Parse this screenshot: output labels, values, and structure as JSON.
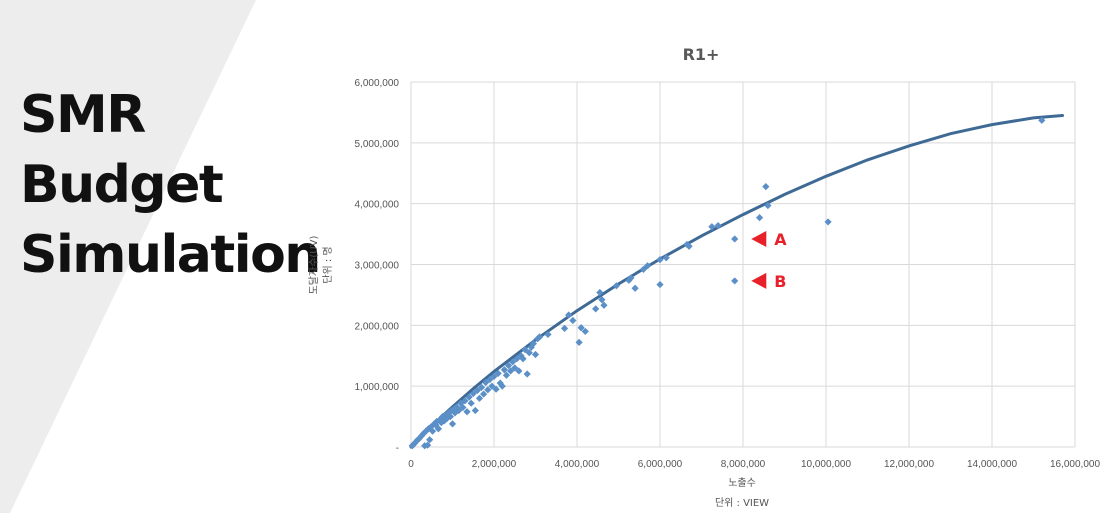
{
  "slide": {
    "title_lines": [
      "SMR",
      "Budget",
      "Simulation"
    ]
  },
  "chart_data": {
    "type": "scatter",
    "title": "R1+",
    "xlabel": "노출수",
    "xunit": "단위 : VIEW",
    "ylabel": "도달자수(UV)",
    "yunit": "단위 : 명",
    "xlim": [
      0,
      16000000
    ],
    "ylim": [
      0,
      6000000
    ],
    "xticks": [
      0,
      2000000,
      4000000,
      6000000,
      8000000,
      10000000,
      12000000,
      14000000,
      16000000
    ],
    "xtick_labels": [
      "0",
      "2,000,000",
      "4,000,000",
      "6,000,000",
      "8,000,000",
      "10,000,000",
      "12,000,000",
      "14,000,000",
      "16,000,000"
    ],
    "yticks": [
      0,
      1000000,
      2000000,
      3000000,
      4000000,
      5000000,
      6000000
    ],
    "ytick_labels": [
      "-",
      "1,000,000",
      "2,000,000",
      "3,000,000",
      "4,000,000",
      "5,000,000",
      "6,000,000"
    ],
    "grid": true,
    "legend": "none",
    "colors": {
      "points": "#5B8FC7",
      "trend": "#3E6A95",
      "annotation": "#E8202A",
      "grid": "#D9D9D9",
      "band": "#EDEDED"
    },
    "points": [
      [
        30000,
        20000
      ],
      [
        60000,
        40000
      ],
      [
        100000,
        70000
      ],
      [
        150000,
        110000
      ],
      [
        200000,
        140000
      ],
      [
        250000,
        180000
      ],
      [
        300000,
        220000
      ],
      [
        330000,
        20000
      ],
      [
        360000,
        260000
      ],
      [
        400000,
        30000
      ],
      [
        420000,
        300000
      ],
      [
        450000,
        120000
      ],
      [
        480000,
        330000
      ],
      [
        520000,
        260000
      ],
      [
        560000,
        380000
      ],
      [
        600000,
        360000
      ],
      [
        620000,
        420000
      ],
      [
        660000,
        300000
      ],
      [
        700000,
        450000
      ],
      [
        730000,
        400000
      ],
      [
        760000,
        500000
      ],
      [
        800000,
        430000
      ],
      [
        830000,
        520000
      ],
      [
        870000,
        470000
      ],
      [
        900000,
        560000
      ],
      [
        950000,
        500000
      ],
      [
        980000,
        600000
      ],
      [
        1000000,
        380000
      ],
      [
        1030000,
        620000
      ],
      [
        1060000,
        560000
      ],
      [
        1100000,
        660000
      ],
      [
        1150000,
        600000
      ],
      [
        1200000,
        720000
      ],
      [
        1250000,
        650000
      ],
      [
        1300000,
        760000
      ],
      [
        1350000,
        580000
      ],
      [
        1400000,
        820000
      ],
      [
        1450000,
        720000
      ],
      [
        1500000,
        880000
      ],
      [
        1550000,
        600000
      ],
      [
        1600000,
        930000
      ],
      [
        1650000,
        800000
      ],
      [
        1700000,
        980000
      ],
      [
        1750000,
        870000
      ],
      [
        1800000,
        1060000
      ],
      [
        1850000,
        940000
      ],
      [
        1900000,
        1110000
      ],
      [
        1950000,
        1000000
      ],
      [
        2000000,
        1160000
      ],
      [
        2050000,
        950000
      ],
      [
        2100000,
        1210000
      ],
      [
        2150000,
        1050000
      ],
      [
        2200000,
        1000000
      ],
      [
        2250000,
        1270000
      ],
      [
        2300000,
        1180000
      ],
      [
        2350000,
        1340000
      ],
      [
        2400000,
        1250000
      ],
      [
        2450000,
        1400000
      ],
      [
        2500000,
        1300000
      ],
      [
        2550000,
        1450000
      ],
      [
        2600000,
        1250000
      ],
      [
        2650000,
        1500000
      ],
      [
        2700000,
        1450000
      ],
      [
        2750000,
        1600000
      ],
      [
        2800000,
        1200000
      ],
      [
        2850000,
        1550000
      ],
      [
        2900000,
        1640000
      ],
      [
        2950000,
        1700000
      ],
      [
        3000000,
        1520000
      ],
      [
        3050000,
        1780000
      ],
      [
        3100000,
        1810000
      ],
      [
        3300000,
        1850000
      ],
      [
        3700000,
        1950000
      ],
      [
        3800000,
        2170000
      ],
      [
        3900000,
        2080000
      ],
      [
        4050000,
        1720000
      ],
      [
        4100000,
        1960000
      ],
      [
        4200000,
        1900000
      ],
      [
        4450000,
        2270000
      ],
      [
        4550000,
        2540000
      ],
      [
        4600000,
        2420000
      ],
      [
        4650000,
        2330000
      ],
      [
        4950000,
        2650000
      ],
      [
        5250000,
        2740000
      ],
      [
        5300000,
        2780000
      ],
      [
        5400000,
        2610000
      ],
      [
        5600000,
        2920000
      ],
      [
        5700000,
        2980000
      ],
      [
        6000000,
        2670000
      ],
      [
        6000000,
        3080000
      ],
      [
        6150000,
        3110000
      ],
      [
        6650000,
        3330000
      ],
      [
        6700000,
        3300000
      ],
      [
        7250000,
        3620000
      ],
      [
        7400000,
        3640000
      ],
      [
        7800000,
        3420000
      ],
      [
        7800000,
        2730000
      ],
      [
        8400000,
        3770000
      ],
      [
        8550000,
        4280000
      ],
      [
        8600000,
        3970000
      ],
      [
        10050000,
        3700000
      ],
      [
        15200000,
        5370000
      ]
    ],
    "trendline": [
      [
        0,
        0
      ],
      [
        500000,
        350000
      ],
      [
        1000000,
        660000
      ],
      [
        1500000,
        960000
      ],
      [
        2000000,
        1240000
      ],
      [
        3000000,
        1760000
      ],
      [
        4000000,
        2240000
      ],
      [
        5000000,
        2680000
      ],
      [
        6000000,
        3090000
      ],
      [
        7000000,
        3470000
      ],
      [
        8000000,
        3820000
      ],
      [
        9000000,
        4150000
      ],
      [
        10000000,
        4450000
      ],
      [
        11000000,
        4720000
      ],
      [
        12000000,
        4950000
      ],
      [
        13000000,
        5150000
      ],
      [
        14000000,
        5300000
      ],
      [
        15000000,
        5410000
      ],
      [
        15700000,
        5450000
      ]
    ],
    "annotations": [
      {
        "label": "A",
        "x": 8200000,
        "y": 3420000
      },
      {
        "label": "B",
        "x": 8200000,
        "y": 2730000
      }
    ]
  }
}
